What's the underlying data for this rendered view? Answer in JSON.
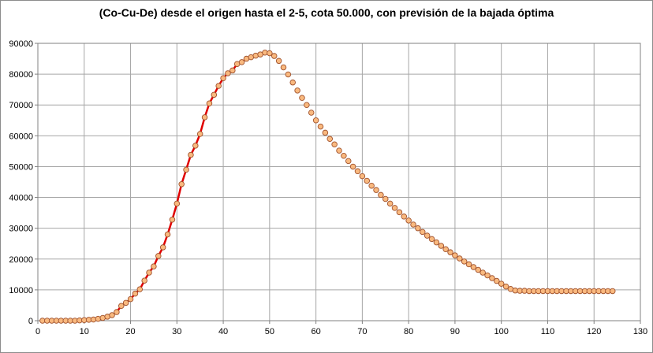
{
  "chart_data": {
    "type": "line",
    "title": "(Co-Cu-De) desde el origen hasta el 2-5, cota 50.000, con previsión de la bajada óptima",
    "xlabel": "",
    "ylabel": "",
    "xlim": [
      0,
      130
    ],
    "ylim": [
      0,
      90000
    ],
    "x_ticks": [
      "0",
      "10",
      "20",
      "30",
      "40",
      "50",
      "60",
      "70",
      "80",
      "90",
      "100",
      "110",
      "120",
      "130"
    ],
    "y_ticks": [
      "0",
      "10000",
      "20000",
      "30000",
      "40000",
      "50000",
      "60000",
      "70000",
      "80000",
      "90000"
    ],
    "grid": true,
    "legend": "none",
    "colors": {
      "actual_line": "#e00000",
      "marker_fill": "#f9b97f",
      "marker_edge": "#a0522d",
      "grid": "#a6a6a6"
    },
    "series": [
      {
        "style": "red-line-with-markers",
        "x": [
          1,
          2,
          3,
          4,
          5,
          6,
          7,
          8,
          9,
          10,
          11,
          12,
          13,
          14,
          15,
          16,
          17,
          18,
          19,
          20,
          21,
          22,
          23,
          24,
          25,
          26,
          27,
          28,
          29,
          30,
          31,
          32,
          33,
          34,
          35,
          36,
          37,
          38,
          39,
          40,
          41,
          42,
          43,
          44,
          45,
          46,
          47,
          48,
          49,
          50
        ],
        "y": [
          0,
          0,
          0,
          0,
          0,
          0,
          0,
          0,
          100,
          200,
          300,
          400,
          600,
          900,
          1300,
          1800,
          2800,
          4800,
          5800,
          7000,
          8800,
          10200,
          13000,
          15600,
          17600,
          21000,
          23800,
          28000,
          32800,
          38000,
          44300,
          49000,
          53800,
          56800,
          60600,
          66000,
          70500,
          73300,
          76200,
          78700,
          80300,
          81200,
          83300,
          83900,
          85000,
          85500,
          86000,
          86400,
          87000,
          86800
        ]
      },
      {
        "style": "markers-only",
        "x": [
          51,
          52,
          53,
          54,
          55,
          56,
          57,
          58,
          59,
          60,
          61,
          62,
          63,
          64,
          65,
          66,
          67,
          68,
          69,
          70,
          71,
          72,
          73,
          74,
          75,
          76,
          77,
          78,
          79,
          80,
          81,
          82,
          83,
          84,
          85,
          86,
          87,
          88,
          89,
          90,
          91,
          92,
          93,
          94,
          95,
          96,
          97,
          98,
          99,
          100,
          101,
          102,
          103,
          104,
          105,
          106,
          107,
          108,
          109,
          110,
          111,
          112,
          113,
          114,
          115,
          116,
          117,
          118,
          119,
          120,
          121,
          122,
          123,
          124
        ],
        "y": [
          85900,
          84300,
          82200,
          79900,
          77300,
          74700,
          72300,
          70000,
          67500,
          65000,
          63000,
          61000,
          59000,
          57200,
          55200,
          53500,
          51800,
          50000,
          48500,
          46900,
          45400,
          43800,
          42400,
          40800,
          39500,
          38000,
          36600,
          35200,
          33800,
          32500,
          31200,
          30000,
          28800,
          27600,
          26500,
          25400,
          24300,
          23200,
          22200,
          21200,
          20200,
          19200,
          18300,
          17400,
          16500,
          15600,
          14700,
          13800,
          12900,
          12000,
          11100,
          10300,
          9800,
          9700,
          9700,
          9600,
          9600,
          9600,
          9600,
          9600,
          9600,
          9600,
          9600,
          9600,
          9600,
          9600,
          9600,
          9600,
          9600,
          9600,
          9600,
          9600,
          9600,
          9600
        ]
      }
    ]
  }
}
